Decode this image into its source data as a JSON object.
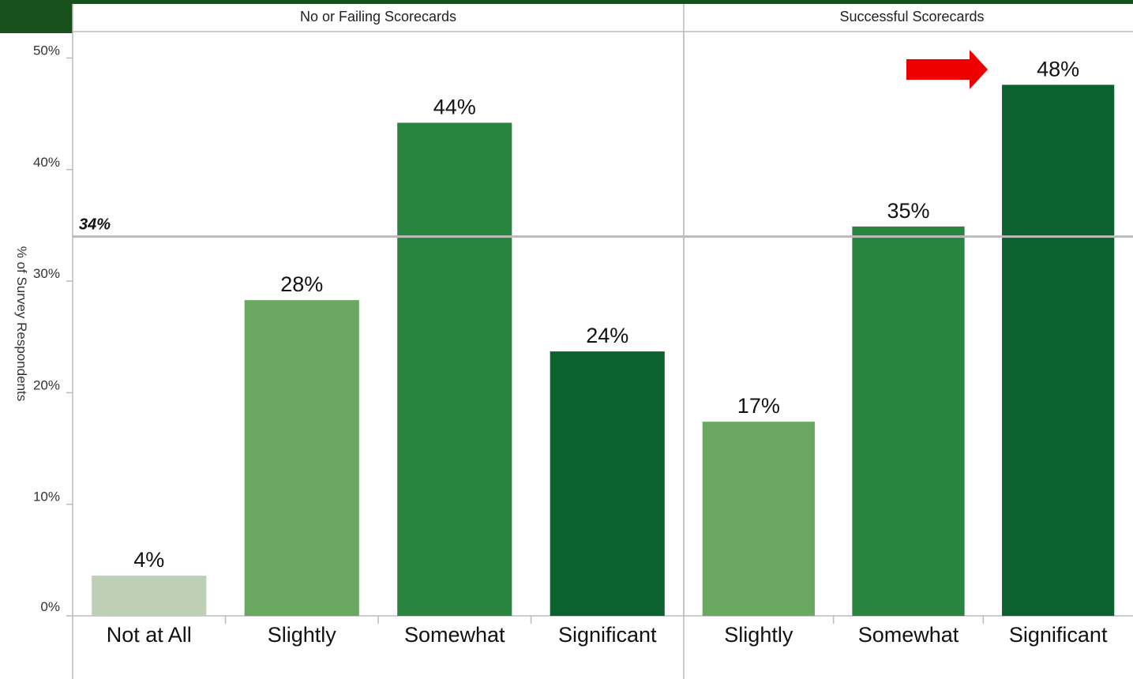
{
  "chart_data": {
    "type": "bar",
    "ylabel": "% of Survey Respondents",
    "ylim": [
      0,
      52
    ],
    "y_ticks": [
      "0%",
      "10%",
      "20%",
      "30%",
      "40%",
      "50%"
    ],
    "y_tick_values": [
      0,
      10,
      20,
      30,
      40,
      50
    ],
    "reference_line": {
      "value": 34,
      "label": "34%"
    },
    "panels": [
      {
        "title": "No or Failing Scorecards",
        "categories": [
          "Not at All",
          "Slightly",
          "Somewhat",
          "Significant"
        ],
        "values": [
          3.6,
          28.3,
          44.2,
          23.7
        ],
        "labels": [
          "4%",
          "28%",
          "44%",
          "24%"
        ],
        "colors": [
          "#bdd0b5",
          "#6aa862",
          "#28843f",
          "#0b622e"
        ]
      },
      {
        "title": "Successful Scorecards",
        "categories": [
          "Slightly",
          "Somewhat",
          "Significant"
        ],
        "values": [
          17.4,
          34.9,
          47.6
        ],
        "labels": [
          "17%",
          "35%",
          "48%"
        ],
        "colors": [
          "#6aa862",
          "#28843f",
          "#0b622e"
        ]
      }
    ],
    "annotation": {
      "shape": "arrow",
      "color": "#ee0000",
      "points_to": "48%"
    },
    "header_band_color": "#17501b"
  }
}
